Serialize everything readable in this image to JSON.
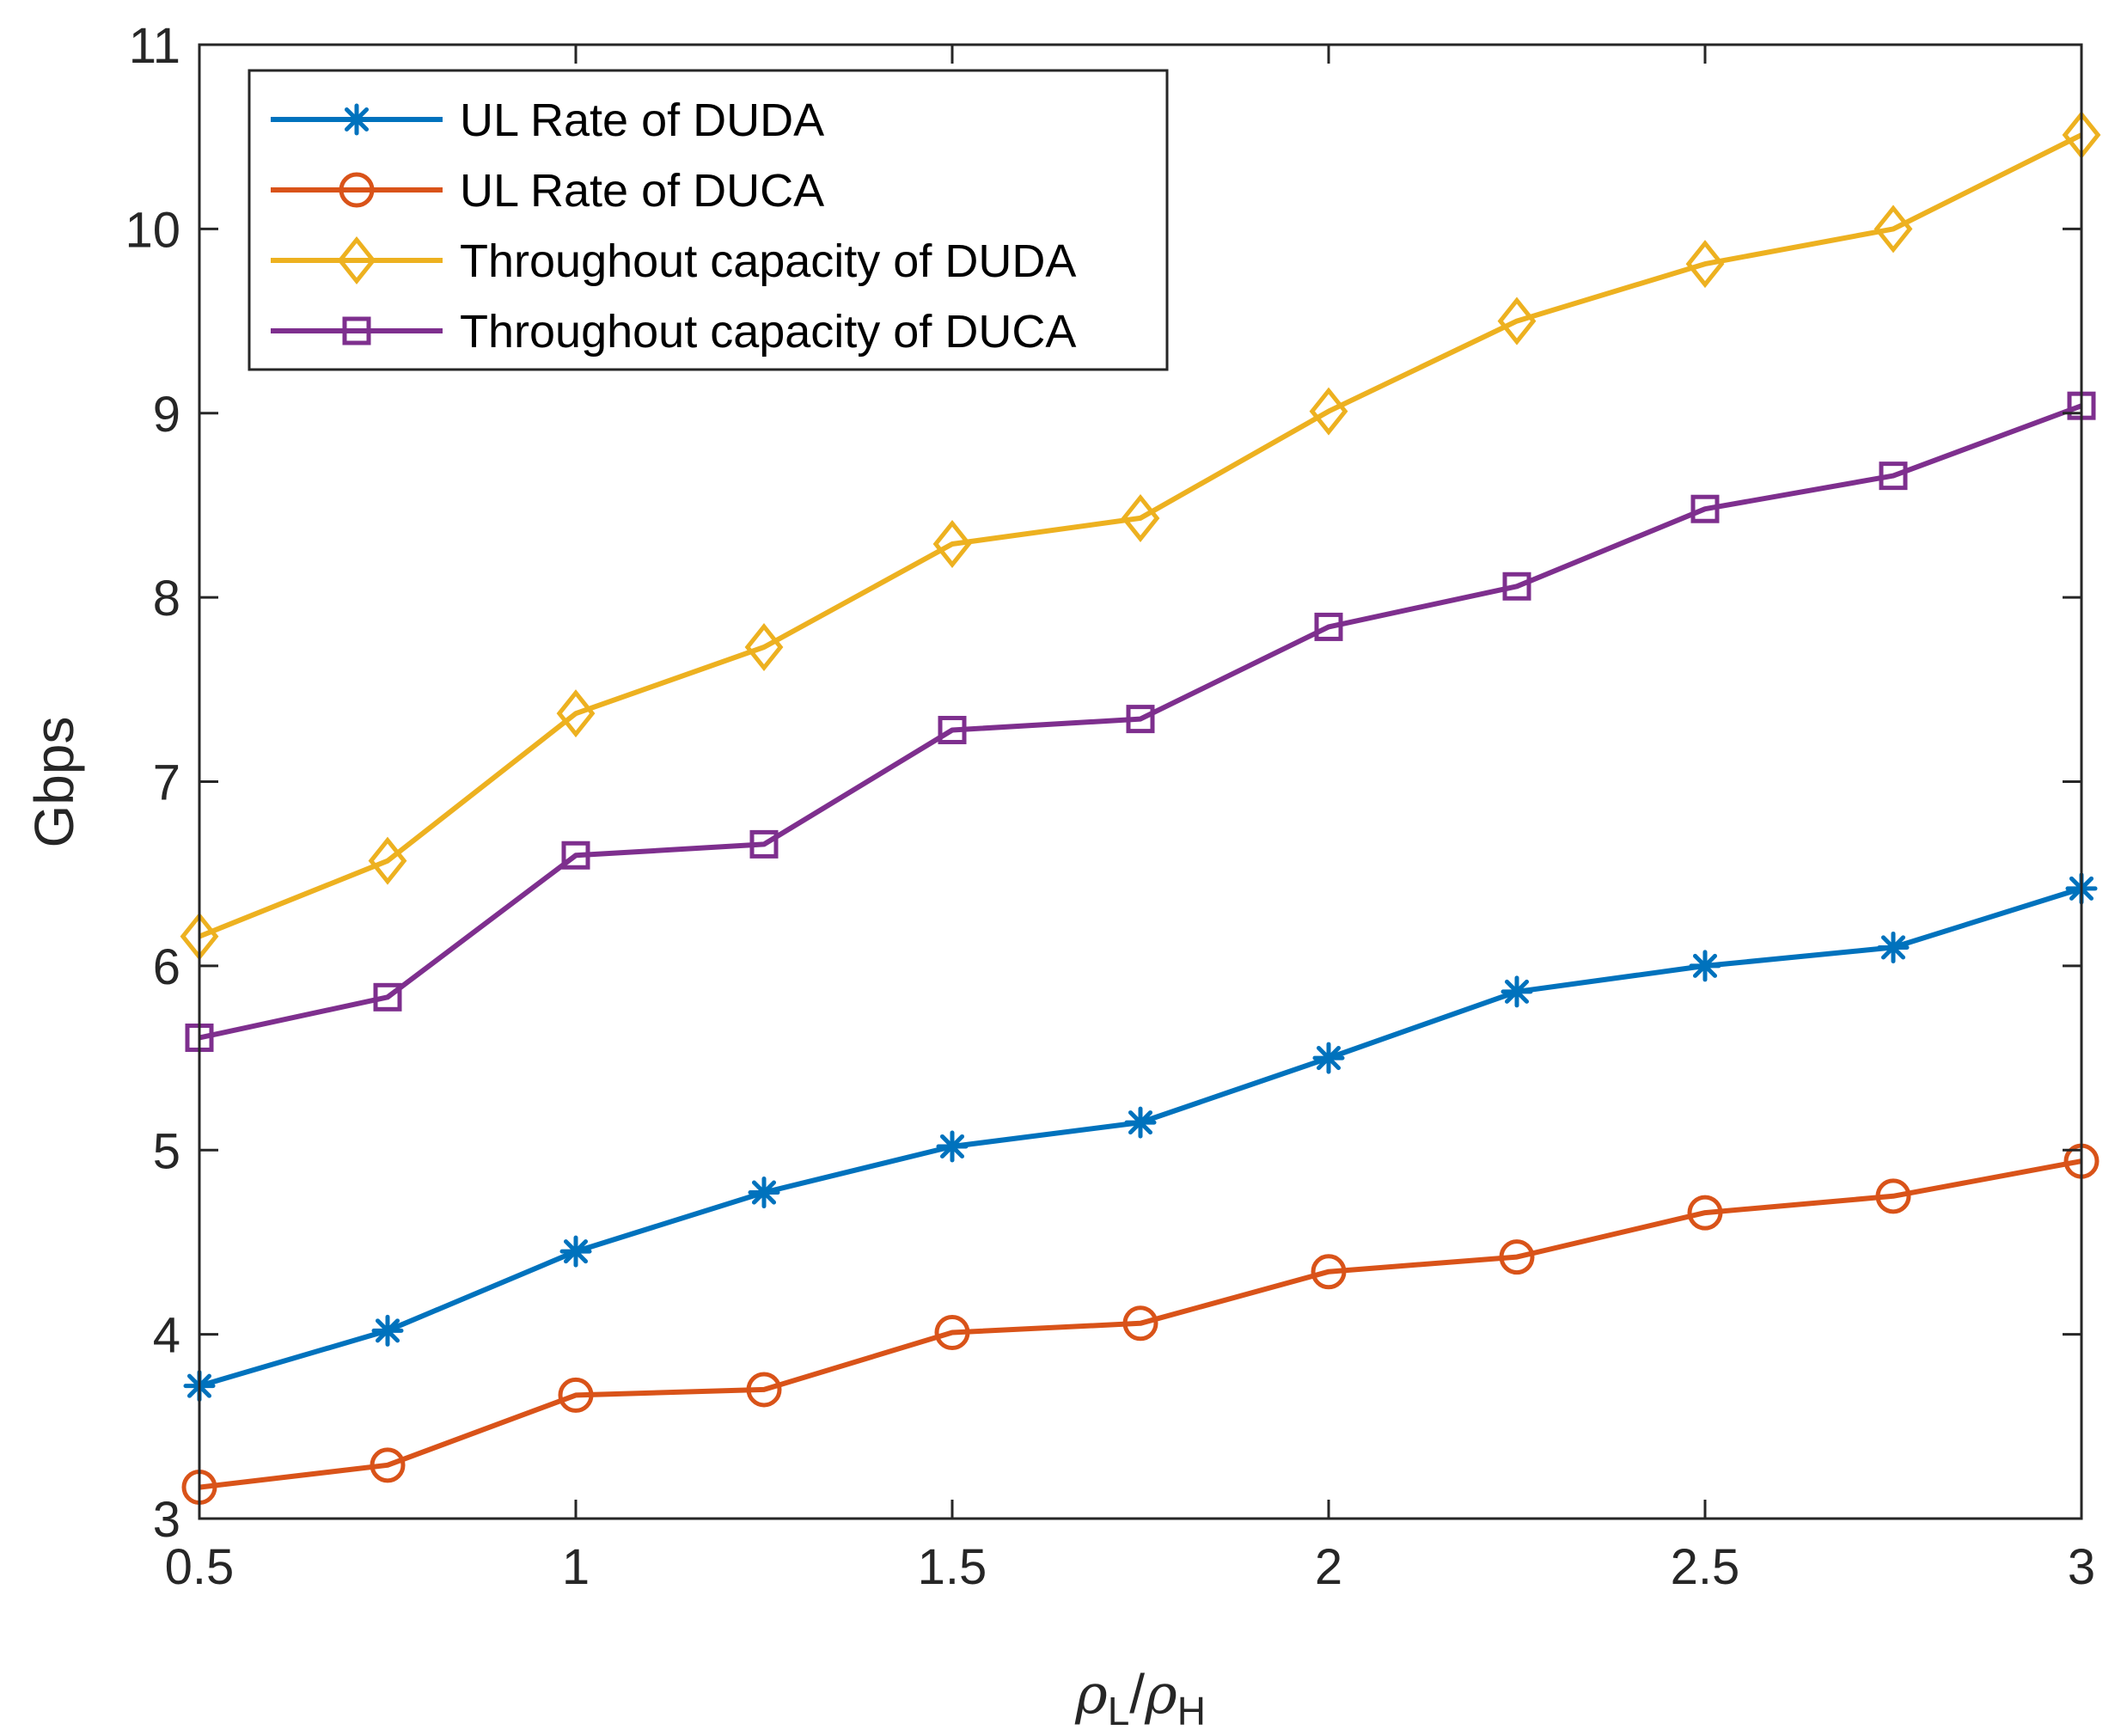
{
  "chart_data": {
    "type": "line",
    "title": "",
    "xlabel": {
      "rho_1": "ρ",
      "sub_1": "L",
      "slash": "/",
      "rho_2": "ρ",
      "sub_2": "H"
    },
    "ylabel": "Gbps",
    "xlim": [
      0.5,
      3
    ],
    "ylim": [
      3,
      11
    ],
    "xticks": [
      0.5,
      1,
      1.5,
      2,
      2.5,
      3
    ],
    "xtick_labels": [
      "0.5",
      "1",
      "1.5",
      "2",
      "2.5",
      "3"
    ],
    "yticks": [
      3,
      4,
      5,
      6,
      7,
      8,
      9,
      10,
      11
    ],
    "ytick_labels": [
      "3",
      "4",
      "5",
      "6",
      "7",
      "8",
      "9",
      "10",
      "11"
    ],
    "grid": false,
    "legend_position": "top-left",
    "x": [
      0.5,
      0.75,
      1.0,
      1.25,
      1.5,
      1.75,
      2.0,
      2.25,
      2.5,
      2.75,
      3.0
    ],
    "series": [
      {
        "name": "UL Rate of DUDA",
        "color": "#0072BD",
        "marker": "asterisk",
        "values": [
          3.72,
          4.02,
          4.45,
          4.77,
          5.02,
          5.15,
          5.5,
          5.86,
          6.0,
          6.1,
          6.42
        ]
      },
      {
        "name": "UL Rate of DUCA",
        "color": "#D95319",
        "marker": "circle",
        "values": [
          3.17,
          3.29,
          3.67,
          3.7,
          4.01,
          4.06,
          4.34,
          4.42,
          4.66,
          4.75,
          4.94
        ]
      },
      {
        "name": "Throughout capacity of DUDA",
        "color": "#EDB120",
        "marker": "diamond",
        "values": [
          6.16,
          6.57,
          7.37,
          7.73,
          8.29,
          8.43,
          9.01,
          9.5,
          9.81,
          10.0,
          10.51
        ]
      },
      {
        "name": "Throughout capacity of DUCA",
        "color": "#7E2F8E",
        "marker": "square",
        "values": [
          5.61,
          5.83,
          6.6,
          6.66,
          7.28,
          7.34,
          7.84,
          8.06,
          8.48,
          8.66,
          9.04
        ]
      }
    ]
  }
}
